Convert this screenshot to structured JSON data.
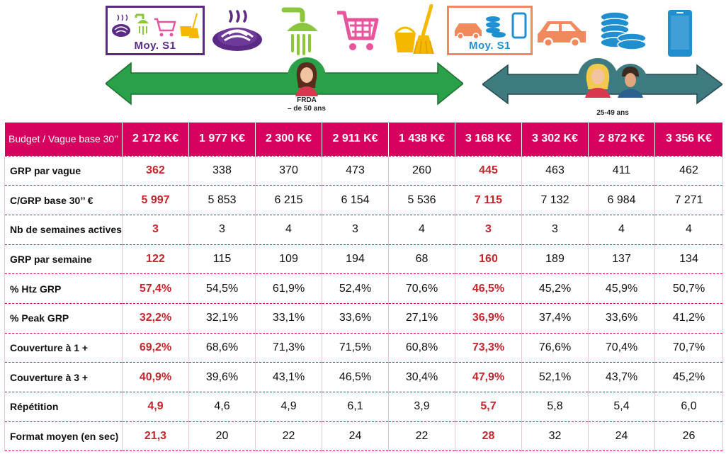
{
  "colors": {
    "header_bg": "#d6005f",
    "highlight_text": "#c3262d",
    "frda_arrow": "#2aa048",
    "adults_arrow": "#3d7b81",
    "frda_box_border": "#5b2a86",
    "adults_box_border": "#f08a5d"
  },
  "header": {
    "frda_box_label": "Moy. S1",
    "adults_box_label": "Moy. S1",
    "frda_arrow_label_line1": "FRDA",
    "frda_arrow_label_line2": "– de 50 ans",
    "adults_arrow_label": "25-49 ans",
    "icons": [
      "pasta-icon",
      "shower-icon",
      "shopping-cart-icon",
      "cleaning-bucket-icon",
      "car-icon",
      "coins-icon",
      "smartphone-icon",
      "woman-avatar-icon",
      "couple-avatar-icon"
    ]
  },
  "table": {
    "corner_label": "Budget / Vague base 30’’",
    "budgets": [
      "2 172 K€",
      "1 977 K€",
      "2 300 K€",
      "2 911 K€",
      "1 438 K€",
      "3 168 K€",
      "3 302 K€",
      "2 872 K€",
      "3 356 K€"
    ],
    "highlight_columns": [
      0,
      5
    ],
    "rows": [
      {
        "label": "GRP par vague",
        "values": [
          "362",
          "338",
          "370",
          "473",
          "260",
          "445",
          "463",
          "411",
          "462"
        ]
      },
      {
        "label": "C/GRP base 30’’ €",
        "values": [
          "5 997",
          "5 853",
          "6 215",
          "6 154",
          "5 536",
          "7 115",
          "7 132",
          "6 984",
          "7 271"
        ]
      },
      {
        "label": "Nb de semaines actives",
        "values": [
          "3",
          "3",
          "4",
          "3",
          "4",
          "3",
          "3",
          "4",
          "4"
        ]
      },
      {
        "label": "GRP par semaine",
        "values": [
          "122",
          "115",
          "109",
          "194",
          "68",
          "160",
          "189",
          "137",
          "134"
        ]
      },
      {
        "label": "% Htz GRP",
        "values": [
          "57,4%",
          "54,5%",
          "61,9%",
          "52,4%",
          "70,6%",
          "46,5%",
          "45,2%",
          "45,9%",
          "50,7%"
        ]
      },
      {
        "label": "% Peak GRP",
        "values": [
          "32,2%",
          "32,1%",
          "33,1%",
          "33,6%",
          "27,1%",
          "36,9%",
          "37,4%",
          "33,6%",
          "41,2%"
        ]
      },
      {
        "label": "Couverture à 1 +",
        "values": [
          "69,2%",
          "68,6%",
          "71,3%",
          "71,5%",
          "60,8%",
          "73,3%",
          "76,6%",
          "70,4%",
          "70,7%"
        ]
      },
      {
        "label": "Couverture à 3 +",
        "values": [
          "40,9%",
          "39,6%",
          "43,1%",
          "46,5%",
          "30,4%",
          "47,9%",
          "52,1%",
          "43,7%",
          "45,2%"
        ]
      },
      {
        "label": "Répétition",
        "values": [
          "4,9",
          "4,6",
          "4,9",
          "6,1",
          "3,9",
          "5,7",
          "5,8",
          "5,4",
          "6,0"
        ]
      },
      {
        "label": "Format moyen (en sec)",
        "values": [
          "21,3",
          "20",
          "22",
          "24",
          "22",
          "28",
          "32",
          "24",
          "26"
        ]
      }
    ]
  }
}
